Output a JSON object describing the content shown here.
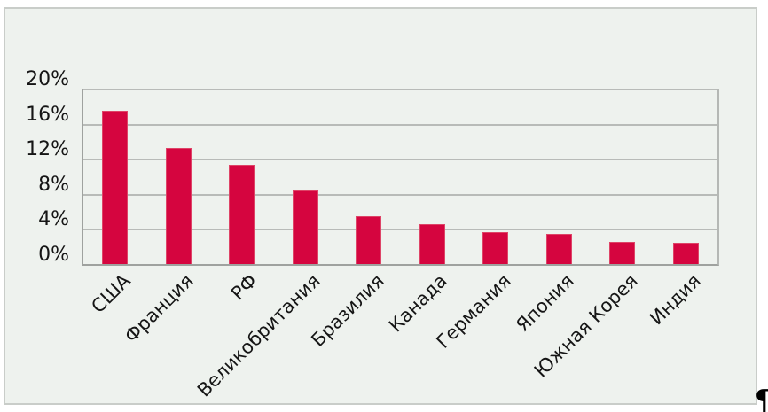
{
  "page": {
    "paragraph_mark": "¶"
  },
  "chart_data": {
    "type": "bar",
    "title": "",
    "xlabel": "",
    "ylabel": "",
    "categories": [
      "США",
      "Франция",
      "РФ",
      "Великобритания",
      "Бразилия",
      "Канада",
      "Германия",
      "Япония",
      "Южная Корея",
      "Индия"
    ],
    "values": [
      17.5,
      13.2,
      11.3,
      8.4,
      5.5,
      4.5,
      3.6,
      3.4,
      2.5,
      2.4
    ],
    "ylim": [
      0,
      20
    ],
    "y_ticks": [
      0,
      4,
      8,
      12,
      16,
      20
    ],
    "y_tick_labels": [
      "0%",
      "4%",
      "8%",
      "12%",
      "16%",
      "20%"
    ],
    "grid": true,
    "legend": false,
    "bar_color": "#d5053f",
    "bar_edge_color": "#de4467",
    "plot_background": "#eef2ee",
    "gridline_color": "#b8bbb8",
    "axis_color": "#9fa29f",
    "label_color": "#151515",
    "x_label_rotation_deg": -45
  }
}
